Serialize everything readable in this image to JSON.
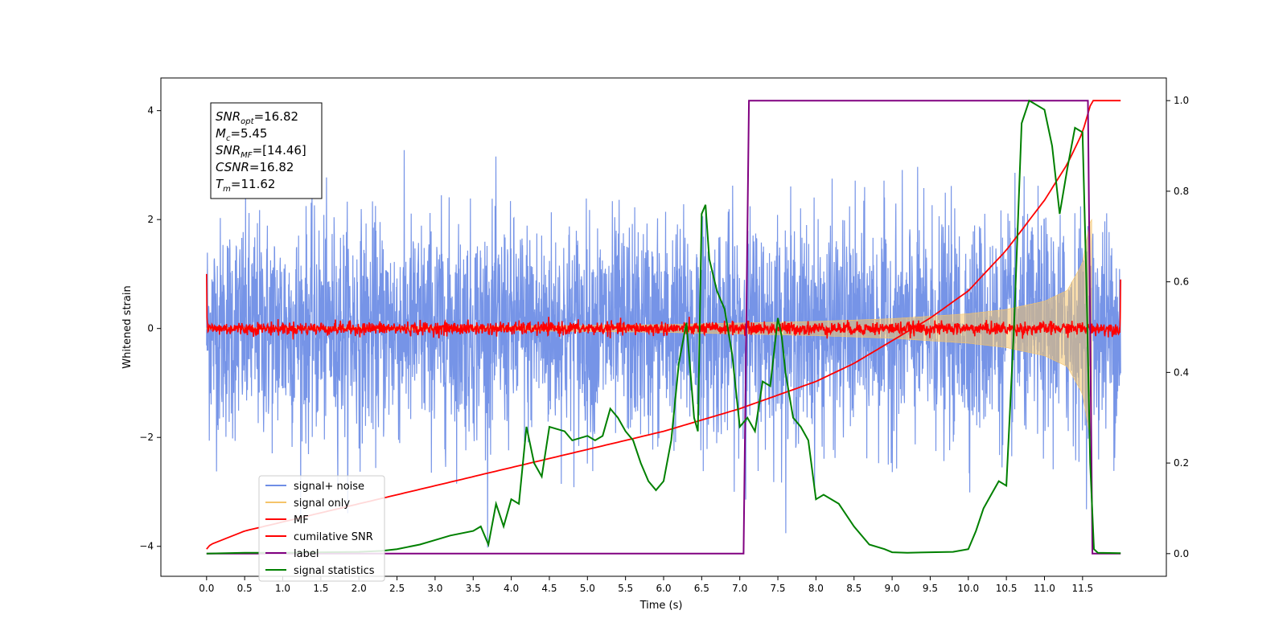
{
  "chart_data": {
    "type": "line",
    "xlabel": "Time (s)",
    "ylabel": "Whitened strain",
    "xlim": [
      -0.6,
      12.6
    ],
    "ylim": [
      -4.55,
      4.6
    ],
    "y2lim": [
      -0.05,
      1.05
    ],
    "x_ticks": [
      "0.0",
      "0.5",
      "1.0",
      "1.5",
      "2.0",
      "2.5",
      "3.0",
      "3.5",
      "4.0",
      "4.5",
      "5.0",
      "5.5",
      "6.0",
      "6.5",
      "7.0",
      "7.5",
      "8.0",
      "8.5",
      "9.0",
      "9.5",
      "10.0",
      "10.5",
      "11.0",
      "11.5"
    ],
    "y_ticks": [
      "4",
      "2",
      "0",
      "−2",
      "−4"
    ],
    "y2_ticks": [
      "1.0",
      "0.8",
      "0.6",
      "0.4",
      "0.2",
      "0.0"
    ],
    "info_box": {
      "snr_opt": {
        "sym": "SNR",
        "sub": "opt",
        "value": "=16.82"
      },
      "mc": {
        "sym": "M",
        "sub": "c",
        "value": "=5.45"
      },
      "snr_mf": {
        "sym": "SNR",
        "sub": "MF",
        "value": "=[14.46]"
      },
      "csnr": {
        "sym": "CSNR",
        "sub": "",
        "value": "=16.82"
      },
      "tm": {
        "sym": "T",
        "sub": "m",
        "value": "=11.62"
      }
    },
    "legend": {
      "placement": "lower-left",
      "entries": [
        {
          "label": "signal+ noise",
          "color": "#6f8ee6"
        },
        {
          "label": "signal only",
          "color": "#f5c46a"
        },
        {
          "label": "MF",
          "color": "#ff0000"
        },
        {
          "label": "cumilative SNR",
          "color": "#ff0000"
        },
        {
          "label": "label",
          "color": "#800080"
        },
        {
          "label": "signal statistics",
          "color": "#008000"
        }
      ]
    },
    "series": [
      {
        "name": "signal+ noise",
        "axis": "left",
        "color": "#6f8ee6",
        "description_values": "noise band, roughly ±2.5 with peaks to ±4",
        "amplitude": 1.0,
        "x_range": [
          0.0,
          12.0
        ]
      },
      {
        "name": "signal only",
        "axis": "left",
        "color": "#f5c46a",
        "envelope": {
          "x": [
            0.0,
            4.0,
            6.0,
            8.0,
            9.0,
            10.0,
            10.5,
            11.0,
            11.3,
            11.5,
            11.6,
            11.62
          ],
          "amp": [
            0.01,
            0.04,
            0.07,
            0.13,
            0.18,
            0.27,
            0.35,
            0.5,
            0.7,
            1.2,
            2.0,
            2.0
          ]
        }
      },
      {
        "name": "MF",
        "axis": "left",
        "color": "#ff0000",
        "x_range": [
          0.0,
          12.0
        ],
        "baseline": 0.0,
        "edge_values": [
          1.0,
          0.9
        ]
      },
      {
        "name": "cumilative SNR",
        "axis": "right",
        "color": "#ff0000",
        "x": [
          0.0,
          0.05,
          0.5,
          1.0,
          2.0,
          3.0,
          4.0,
          5.0,
          6.0,
          7.0,
          8.0,
          8.5,
          9.0,
          9.5,
          10.0,
          10.5,
          11.0,
          11.3,
          11.5,
          11.62,
          12.0
        ],
        "y": [
          0.01,
          0.02,
          0.05,
          0.07,
          0.11,
          0.15,
          0.19,
          0.23,
          0.27,
          0.32,
          0.38,
          0.42,
          0.47,
          0.52,
          0.58,
          0.67,
          0.78,
          0.86,
          0.93,
          1.0,
          1.0
        ]
      },
      {
        "name": "label",
        "axis": "right",
        "color": "#800080",
        "x": [
          0.0,
          7.05,
          7.12,
          11.57,
          11.63,
          12.0
        ],
        "y": [
          0.0,
          0.0,
          1.0,
          1.0,
          0.0,
          0.0
        ]
      },
      {
        "name": "signal statistics",
        "axis": "right",
        "color": "#008000",
        "x": [
          0.0,
          0.5,
          1.0,
          1.5,
          2.0,
          2.3,
          2.5,
          2.8,
          3.0,
          3.2,
          3.5,
          3.6,
          3.7,
          3.8,
          3.9,
          4.0,
          4.1,
          4.2,
          4.3,
          4.4,
          4.5,
          4.7,
          4.8,
          5.0,
          5.1,
          5.2,
          5.3,
          5.4,
          5.5,
          5.6,
          5.7,
          5.8,
          5.9,
          6.0,
          6.1,
          6.2,
          6.3,
          6.4,
          6.45,
          6.5,
          6.55,
          6.6,
          6.7,
          6.8,
          6.9,
          7.0,
          7.1,
          7.2,
          7.3,
          7.4,
          7.5,
          7.55,
          7.6,
          7.7,
          7.8,
          7.9,
          8.0,
          8.1,
          8.3,
          8.5,
          8.7,
          8.9,
          9.0,
          9.2,
          9.5,
          9.8,
          10.0,
          10.1,
          10.2,
          10.3,
          10.4,
          10.5,
          10.6,
          10.7,
          10.8,
          10.9,
          11.0,
          11.1,
          11.2,
          11.3,
          11.4,
          11.5,
          11.55,
          11.6,
          11.65,
          11.7,
          12.0
        ],
        "y": [
          0.0,
          0.002,
          0.002,
          0.003,
          0.004,
          0.006,
          0.01,
          0.02,
          0.03,
          0.04,
          0.05,
          0.06,
          0.02,
          0.11,
          0.06,
          0.12,
          0.11,
          0.28,
          0.2,
          0.17,
          0.28,
          0.27,
          0.25,
          0.26,
          0.25,
          0.26,
          0.32,
          0.3,
          0.27,
          0.25,
          0.2,
          0.16,
          0.14,
          0.16,
          0.25,
          0.42,
          0.51,
          0.3,
          0.27,
          0.75,
          0.77,
          0.65,
          0.58,
          0.54,
          0.44,
          0.28,
          0.3,
          0.27,
          0.38,
          0.37,
          0.52,
          0.48,
          0.4,
          0.3,
          0.28,
          0.25,
          0.12,
          0.13,
          0.11,
          0.06,
          0.02,
          0.01,
          0.003,
          0.002,
          0.003,
          0.004,
          0.01,
          0.05,
          0.1,
          0.13,
          0.16,
          0.15,
          0.5,
          0.95,
          1.0,
          0.99,
          0.98,
          0.9,
          0.75,
          0.85,
          0.94,
          0.93,
          0.6,
          0.2,
          0.01,
          0.002,
          0.001
        ]
      }
    ]
  }
}
